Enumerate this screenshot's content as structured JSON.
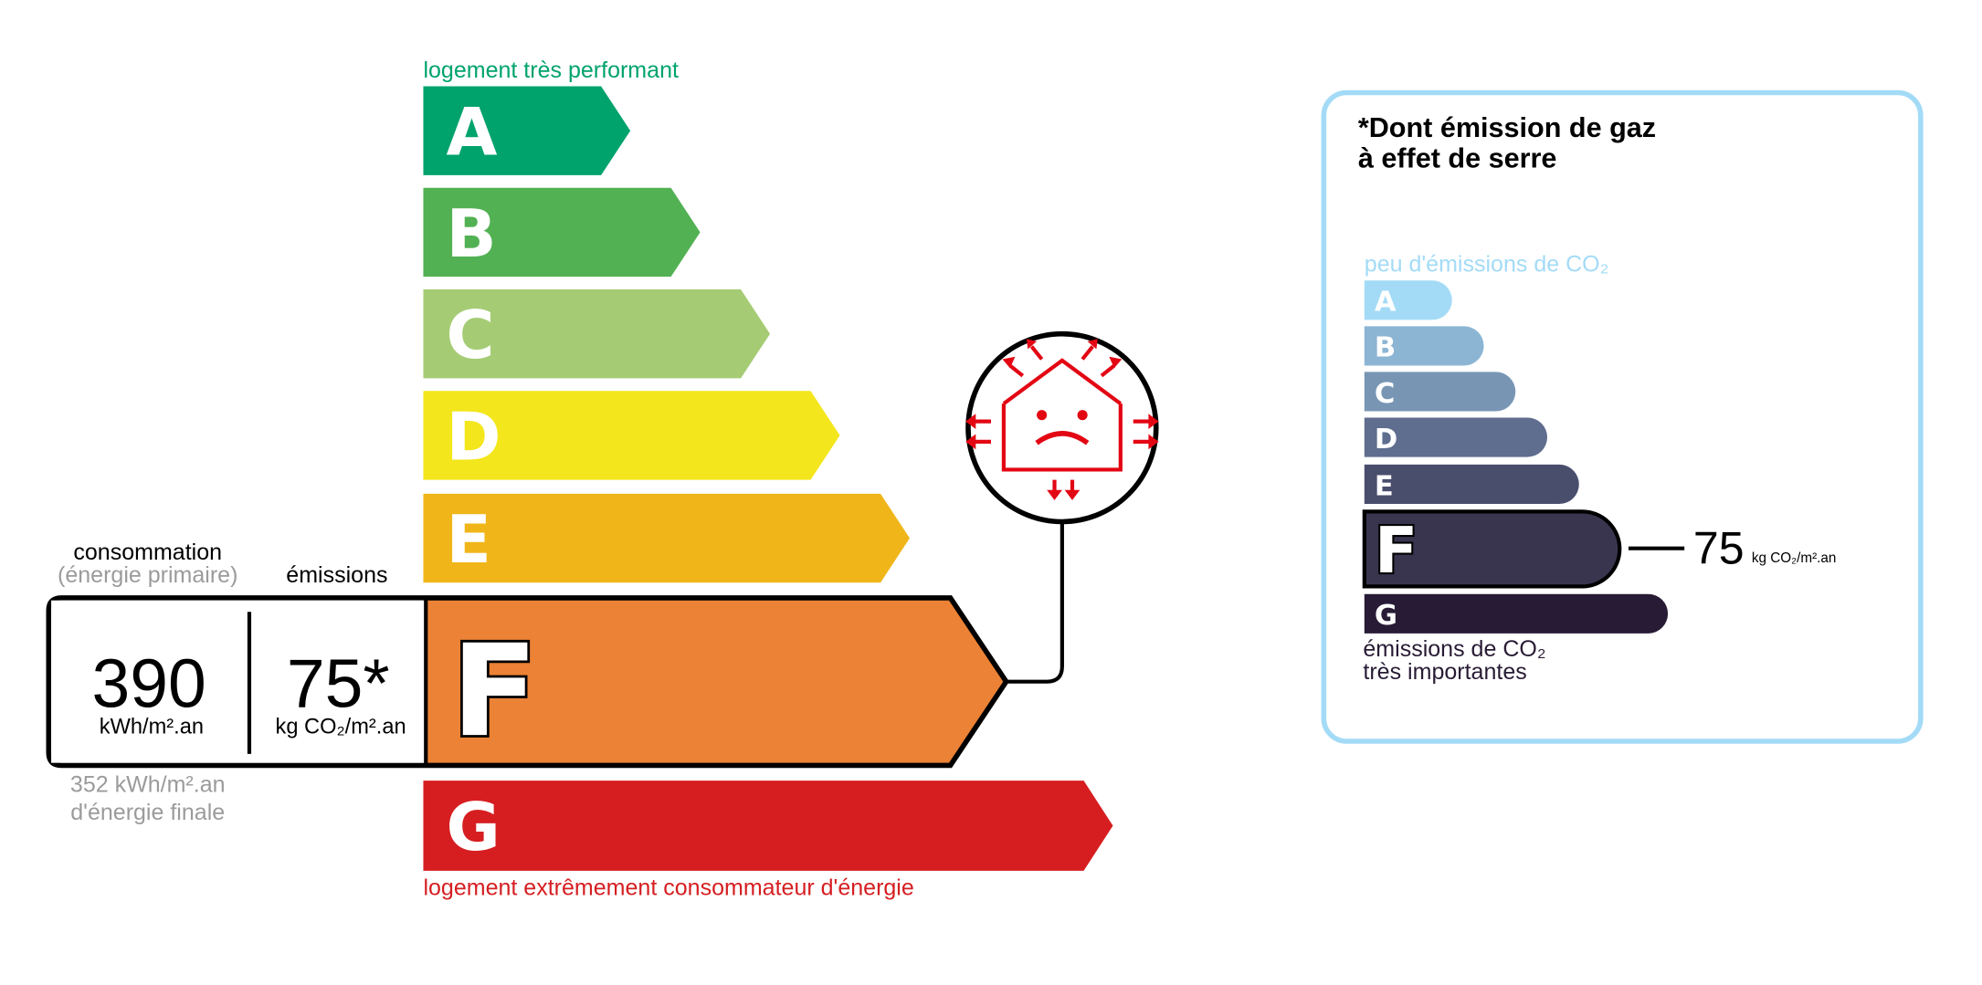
{
  "energy": {
    "top_label": "logement très performant",
    "bottom_label": "logement extrêmement consommateur d'énergie",
    "classes": [
      {
        "letter": "A",
        "color": "#00a36c"
      },
      {
        "letter": "B",
        "color": "#52b153"
      },
      {
        "letter": "C",
        "color": "#a5cc74"
      },
      {
        "letter": "D",
        "color": "#f3e61c"
      },
      {
        "letter": "E",
        "color": "#f0b619"
      },
      {
        "letter": "F",
        "color": "#eb8235"
      },
      {
        "letter": "G",
        "color": "#d61e21"
      }
    ],
    "current_class": "F",
    "consumption_label": "consommation",
    "consumption_sublabel": "(énergie primaire)",
    "emissions_label": "émissions",
    "consumption_value": "390",
    "consumption_unit": "kWh/m².an",
    "emissions_value": "75*",
    "emissions_unit": "kg CO₂/m².an",
    "final_energy_line1": "352 kWh/m².an",
    "final_energy_line2": "d'énergie finale",
    "icon": "poorly-insulated-house-icon",
    "icon_color": "#e30613"
  },
  "ges": {
    "title_line1": "*Dont émission de gaz",
    "title_line2": "à effet de serre",
    "top_label": "peu d'émissions de CO₂",
    "bottom_label_line1": "émissions de CO₂",
    "bottom_label_line2": "très importantes",
    "classes": [
      {
        "letter": "A",
        "color": "#a3dbf7"
      },
      {
        "letter": "B",
        "color": "#8cb5d4"
      },
      {
        "letter": "C",
        "color": "#7896b4"
      },
      {
        "letter": "D",
        "color": "#5f6d8f"
      },
      {
        "letter": "E",
        "color": "#4a4e6d"
      },
      {
        "letter": "F",
        "color": "#39354f"
      },
      {
        "letter": "G",
        "color": "#281b35"
      }
    ],
    "current_class": "F",
    "value": "75",
    "unit": "kg CO₂/m².an",
    "border_color": "#a3dbf7"
  }
}
